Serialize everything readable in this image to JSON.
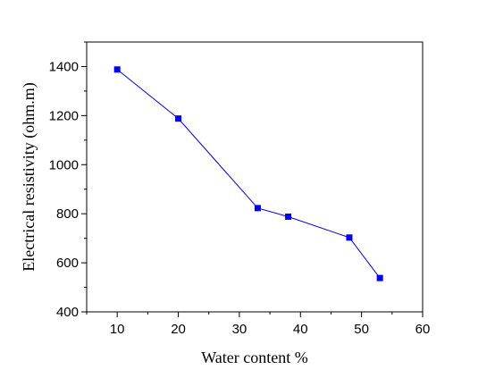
{
  "chart_data": {
    "type": "line",
    "title": "",
    "xlabel": "Water content %",
    "ylabel": "Electrical resistivity (ohm.m)",
    "xlim": [
      5,
      60
    ],
    "ylim": [
      400,
      1500
    ],
    "xticks": [
      10,
      20,
      30,
      40,
      50,
      60
    ],
    "yticks": [
      400,
      600,
      800,
      1000,
      1200,
      1400
    ],
    "grid": false,
    "legend": "none",
    "series": [
      {
        "color": "#0000ff",
        "marker": "square",
        "x": [
          10,
          20,
          33,
          38,
          48,
          53
        ],
        "y": [
          1388,
          1188,
          823,
          788,
          703,
          538
        ]
      }
    ]
  }
}
